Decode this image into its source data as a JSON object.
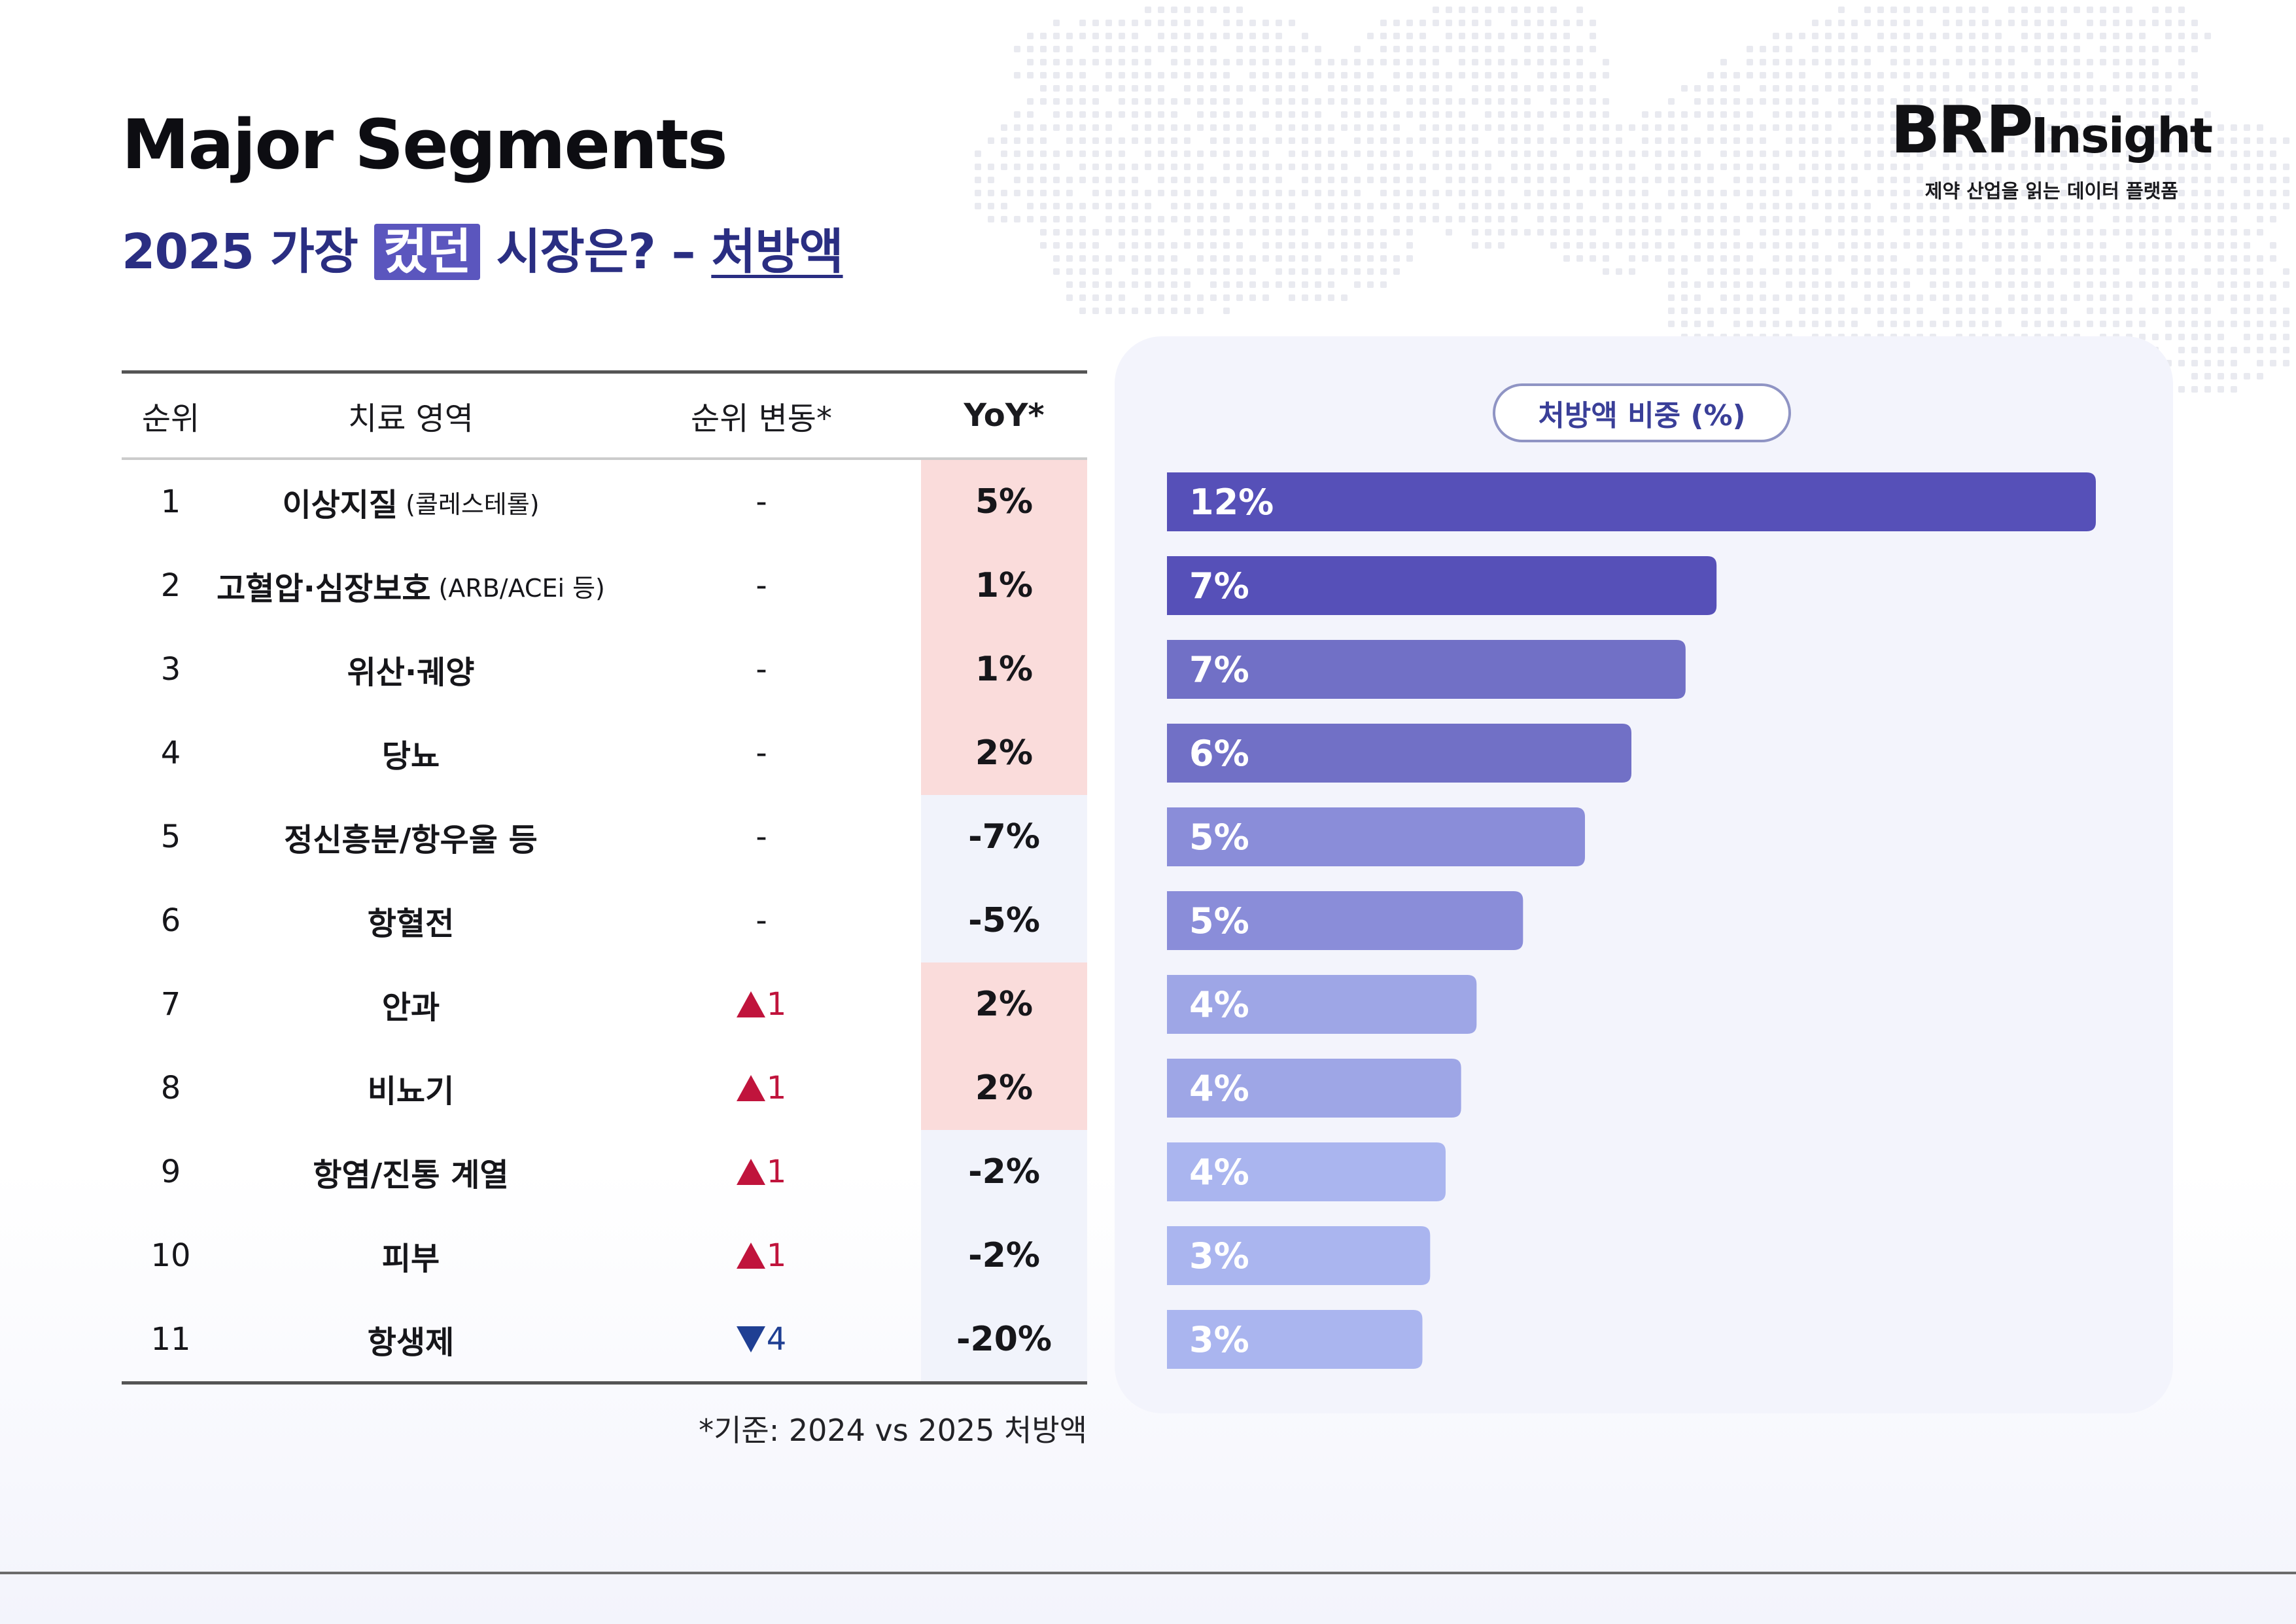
{
  "header": {
    "title": "Major Segments",
    "subtitle_year": "2025 가장",
    "subtitle_highlight": "컸던",
    "subtitle_question": "시장은? –",
    "subtitle_topic": "처방액"
  },
  "brand": {
    "logo_main": "BRP",
    "logo_sub": "Insight",
    "tagline": "제약 산업을 읽는 데이터 플랫폼"
  },
  "table": {
    "headers": [
      "순위",
      "치료 영역",
      "순위 변동*",
      "YoY*"
    ],
    "rows": [
      {
        "rank": "1",
        "area": "이상지질",
        "note": "(콜레스테롤)",
        "change_dir": "none",
        "change": "-",
        "yoy": "5%",
        "yoy_sign": "pos"
      },
      {
        "rank": "2",
        "area": "고혈압·심장보호",
        "note": "(ARB/ACEi 등)",
        "change_dir": "none",
        "change": "-",
        "yoy": "1%",
        "yoy_sign": "pos"
      },
      {
        "rank": "3",
        "area": "위산·궤양",
        "note": "",
        "change_dir": "none",
        "change": "-",
        "yoy": "1%",
        "yoy_sign": "pos"
      },
      {
        "rank": "4",
        "area": "당뇨",
        "note": "",
        "change_dir": "none",
        "change": "-",
        "yoy": "2%",
        "yoy_sign": "pos"
      },
      {
        "rank": "5",
        "area": "정신흥분/항우울 등",
        "note": "",
        "change_dir": "none",
        "change": "-",
        "yoy": "-7%",
        "yoy_sign": "neg"
      },
      {
        "rank": "6",
        "area": "항혈전",
        "note": "",
        "change_dir": "none",
        "change": "-",
        "yoy": "-5%",
        "yoy_sign": "neg"
      },
      {
        "rank": "7",
        "area": "안과",
        "note": "",
        "change_dir": "up",
        "change": "1",
        "yoy": "2%",
        "yoy_sign": "pos"
      },
      {
        "rank": "8",
        "area": "비뇨기",
        "note": "",
        "change_dir": "up",
        "change": "1",
        "yoy": "2%",
        "yoy_sign": "pos"
      },
      {
        "rank": "9",
        "area": "항염/진통 계열",
        "note": "",
        "change_dir": "up",
        "change": "1",
        "yoy": "-2%",
        "yoy_sign": "neg"
      },
      {
        "rank": "10",
        "area": "피부",
        "note": "",
        "change_dir": "up",
        "change": "1",
        "yoy": "-2%",
        "yoy_sign": "neg"
      },
      {
        "rank": "11",
        "area": "항생제",
        "note": "",
        "change_dir": "down",
        "change": "4",
        "yoy": "-20%",
        "yoy_sign": "neg"
      }
    ],
    "footnote": "*기준: 2024 vs 2025 처방액"
  },
  "colors": {
    "accent": "#5b56be",
    "navy": "#2a2e82",
    "up_red": "#c0143c",
    "down_blue": "#1f3f93",
    "yoy_pos_bg": "#fadcdb",
    "yoy_neg_bg": "#f1f3fb",
    "panel_bg": "#f3f4fc",
    "bar_colors": [
      "#5650b8",
      "#5650b8",
      "#7170c6",
      "#7170c6",
      "#8a8dd9",
      "#8a8dd9",
      "#9ea6e6",
      "#9ea6e6",
      "#aab5ef",
      "#aab5ef",
      "#aab5ef"
    ]
  },
  "chart_data": {
    "type": "bar",
    "orientation": "horizontal",
    "title": "처방액 비중 (%)",
    "categories": [
      "이상지질",
      "고혈압·심장보호",
      "위산·궤양",
      "당뇨",
      "정신흥분/항우울 등",
      "항혈전",
      "안과",
      "비뇨기",
      "항염/진통 계열",
      "피부",
      "항생제"
    ],
    "values": [
      12.0,
      7.1,
      6.7,
      6.0,
      5.4,
      4.6,
      4.0,
      3.8,
      3.6,
      3.4,
      3.3
    ],
    "data_labels": [
      "12%",
      "7%",
      "7%",
      "6%",
      "5%",
      "5%",
      "4%",
      "4%",
      "4%",
      "3%",
      "3%"
    ],
    "xlim": [
      0,
      12
    ],
    "grid": false,
    "legend": "none"
  }
}
